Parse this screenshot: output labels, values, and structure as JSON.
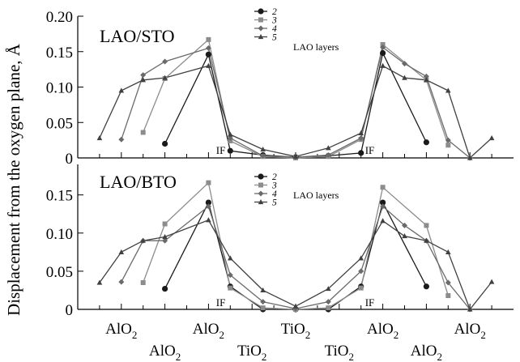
{
  "ylabel": "Displacement from the oxygen plane, Å",
  "colors": {
    "2": "#1a1a1a",
    "3": "#8c8c8c",
    "4": "#6a6a6a",
    "5": "#404040"
  },
  "x_ticks": [
    {
      "x": 1,
      "label": "AlO",
      "sub": "2",
      "row": "top"
    },
    {
      "x": 2,
      "label": "AlO",
      "sub": "2",
      "row": "bottom"
    },
    {
      "x": 3,
      "label": "AlO",
      "sub": "2",
      "row": "top"
    },
    {
      "x": 4,
      "label": "TiO",
      "sub": "2",
      "row": "bottom"
    },
    {
      "x": 5,
      "label": "TiO",
      "sub": "2",
      "row": "top"
    },
    {
      "x": 6,
      "label": "TiO",
      "sub": "2",
      "row": "bottom"
    },
    {
      "x": 7,
      "label": "AlO",
      "sub": "2",
      "row": "top"
    },
    {
      "x": 8,
      "label": "AlO",
      "sub": "2",
      "row": "bottom"
    },
    {
      "x": 9,
      "label": "AlO",
      "sub": "2",
      "row": "top"
    }
  ],
  "chart_data": [
    {
      "type": "line",
      "title": "LAO/STO",
      "legend_title": "LAO layers",
      "ylim": [
        0,
        0.2
      ],
      "xlim": [
        0,
        10
      ],
      "y_ticks": [
        "0",
        "0.05",
        "0.10",
        "0.15",
        "0.20"
      ],
      "y_tick_values": [
        0,
        0.05,
        0.1,
        0.15,
        0.2
      ],
      "annotations": [
        {
          "text": "IF",
          "x": 3.5,
          "y": 0.0
        },
        {
          "text": "IF",
          "x": 6.5,
          "y": 0.0
        }
      ],
      "series": [
        {
          "name": "2",
          "marker": "circle",
          "x": [
            2,
            3,
            3.5,
            4.25,
            5,
            5.75,
            6.5,
            7,
            8
          ],
          "y": [
            0.02,
            0.146,
            0.01,
            0.004,
            0.001,
            0.003,
            0.007,
            0.148,
            0.022
          ]
        },
        {
          "name": "3",
          "marker": "square",
          "x": [
            1.5,
            2,
            3,
            3.5,
            4.25,
            5,
            5.75,
            6.5,
            7,
            8,
            8.5
          ],
          "y": [
            0.036,
            0.112,
            0.167,
            0.024,
            0.002,
            0.0,
            0.002,
            0.026,
            0.16,
            0.11,
            0.018
          ]
        },
        {
          "name": "4",
          "marker": "diamond",
          "x": [
            1,
            1.5,
            2,
            3,
            3.5,
            4.25,
            5,
            5.75,
            6.5,
            7,
            7.5,
            8,
            8.5,
            9
          ],
          "y": [
            0.026,
            0.117,
            0.136,
            0.155,
            0.028,
            0.003,
            0.001,
            0.004,
            0.028,
            0.156,
            0.133,
            0.115,
            0.025,
            0.0
          ]
        },
        {
          "name": "5",
          "marker": "triangle",
          "x": [
            0.5,
            1,
            1.5,
            2,
            3,
            3.5,
            4.25,
            5,
            5.75,
            6.5,
            7,
            7.5,
            8,
            8.5,
            9,
            9.5
          ],
          "y": [
            0.028,
            0.095,
            0.11,
            0.113,
            0.13,
            0.033,
            0.012,
            0.002,
            0.014,
            0.035,
            0.13,
            0.113,
            0.11,
            0.095,
            0.0,
            0.028
          ]
        }
      ]
    },
    {
      "type": "line",
      "title": "LAO/BTO",
      "legend_title": "LAO layers",
      "ylim": [
        0,
        0.19
      ],
      "xlim": [
        0,
        10
      ],
      "y_ticks": [
        "0",
        "0.05",
        "0.10",
        "0.15"
      ],
      "y_tick_values": [
        0,
        0.05,
        0.1,
        0.15
      ],
      "annotations": [
        {
          "text": "IF",
          "x": 3.5,
          "y": 0.0
        },
        {
          "text": "IF",
          "x": 6.5,
          "y": 0.0
        }
      ],
      "series": [
        {
          "name": "2",
          "marker": "circle",
          "x": [
            2,
            3,
            3.5,
            4.25,
            5,
            5.75,
            6.5,
            7,
            8
          ],
          "y": [
            0.027,
            0.14,
            0.03,
            0.0,
            0.0,
            0.0,
            0.03,
            0.14,
            0.03
          ]
        },
        {
          "name": "3",
          "marker": "square",
          "x": [
            1.5,
            2,
            3,
            3.5,
            4.25,
            5,
            5.75,
            6.5,
            7,
            8,
            8.5
          ],
          "y": [
            0.035,
            0.112,
            0.166,
            0.028,
            0.002,
            0.0,
            0.002,
            0.028,
            0.16,
            0.11,
            0.018
          ]
        },
        {
          "name": "4",
          "marker": "diamond",
          "x": [
            1,
            1.5,
            2,
            3,
            3.5,
            4.25,
            5,
            5.75,
            6.5,
            7,
            7.5,
            8,
            8.5,
            9
          ],
          "y": [
            0.036,
            0.09,
            0.09,
            0.135,
            0.045,
            0.01,
            0.001,
            0.01,
            0.05,
            0.135,
            0.11,
            0.09,
            0.035,
            0.0
          ]
        },
        {
          "name": "5",
          "marker": "triangle",
          "x": [
            0.5,
            1,
            1.5,
            2,
            3,
            3.5,
            4.25,
            5,
            5.75,
            6.5,
            7,
            7.5,
            8,
            8.5,
            9,
            9.5
          ],
          "y": [
            0.035,
            0.075,
            0.09,
            0.095,
            0.117,
            0.067,
            0.025,
            0.004,
            0.027,
            0.067,
            0.116,
            0.096,
            0.09,
            0.075,
            0.0,
            0.036
          ]
        }
      ]
    }
  ]
}
